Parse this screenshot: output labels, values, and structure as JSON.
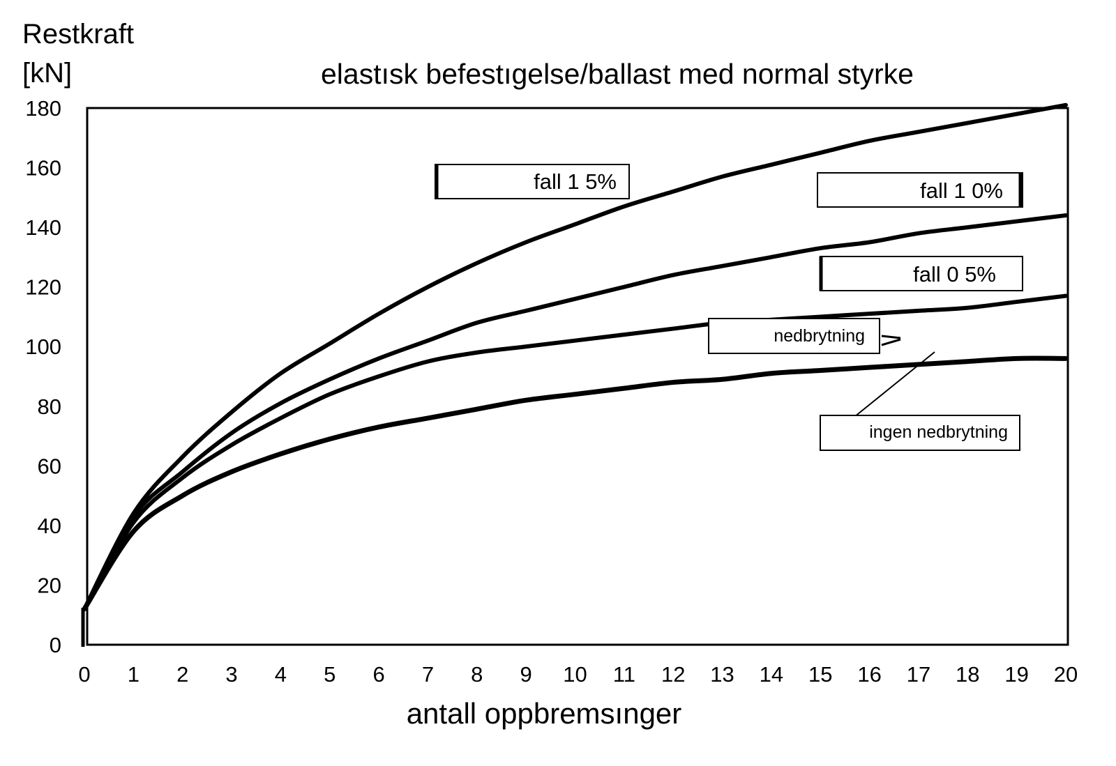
{
  "chart_data": {
    "type": "line",
    "title": "elastısk befestıgelse/ballast med normal styrke",
    "ylabel_line1": "Restkraft",
    "ylabel_line2": "[kN]",
    "xlabel": "antall oppbremsınger",
    "xlim": [
      0,
      20
    ],
    "ylim": [
      0,
      180
    ],
    "x_ticks": [
      0,
      1,
      2,
      3,
      4,
      5,
      6,
      7,
      8,
      9,
      10,
      11,
      12,
      13,
      14,
      15,
      16,
      17,
      18,
      19,
      20
    ],
    "y_ticks": [
      0,
      20,
      40,
      60,
      80,
      100,
      120,
      140,
      160,
      180
    ],
    "grid": false,
    "x": [
      0,
      1,
      2,
      3,
      4,
      5,
      6,
      7,
      8,
      9,
      10,
      11,
      12,
      13,
      14,
      15,
      16,
      17,
      18,
      19,
      20
    ],
    "series": [
      {
        "name": "fall 1 5%",
        "values": [
          12,
          44,
          63,
          78,
          91,
          101,
          111,
          120,
          128,
          135,
          141,
          147,
          152,
          157,
          161,
          165,
          169,
          172,
          175,
          178,
          181
        ]
      },
      {
        "name": "fall 1 0%",
        "values": [
          12,
          43,
          58,
          71,
          81,
          89,
          96,
          102,
          108,
          112,
          116,
          120,
          124,
          127,
          130,
          133,
          135,
          138,
          140,
          142,
          144
        ]
      },
      {
        "name": "fall 0 5%",
        "values": [
          12,
          41,
          56,
          67,
          76,
          84,
          90,
          95,
          98,
          100,
          102,
          104,
          106,
          108,
          109,
          110,
          111,
          112,
          113,
          115,
          117
        ]
      },
      {
        "name": "ingen nedbrytning",
        "values": [
          12,
          38,
          50,
          58,
          64,
          69,
          73,
          76,
          79,
          82,
          84,
          86,
          88,
          89,
          91,
          92,
          93,
          94,
          95,
          96,
          96
        ]
      }
    ],
    "annotations": [
      "fall 1 5%",
      "fall 1 0%",
      "fall 0 5%",
      "nedbrytning",
      "ingen nedbrytning"
    ]
  }
}
